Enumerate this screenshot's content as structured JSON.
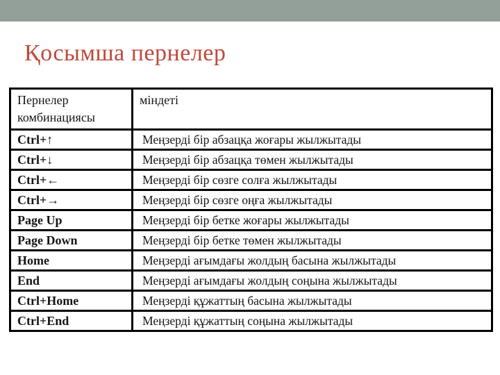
{
  "slide": {
    "title": "Қосымша пернелер"
  },
  "colors": {
    "top_band": "#93A099",
    "title_text": "#C0493B",
    "table_border": "#000000",
    "table_text": "#141414",
    "background": "#FFFFFF"
  },
  "table": {
    "headers": [
      "Пернелер комбинациясы",
      "міндеті"
    ],
    "rows": [
      {
        "key": "Ctrl+↑",
        "desc": "Меңзерді бір абзацқа жоғары жылжытады"
      },
      {
        "key": "Ctrl+↓",
        "desc": "Меңзерді бір абзацқа төмен жылжытады"
      },
      {
        "key": "Ctrl+←",
        "desc": "Меңзерді бір сөзге солға жылжытады"
      },
      {
        "key": "Ctrl+→",
        "desc": "Меңзерді бір сөзге оңға жылжытады"
      },
      {
        "key": "Page Up",
        "desc": "Меңзерді бір бетке жоғары жылжытады"
      },
      {
        "key": "Page Down",
        "desc": "Меңзерді бір бетке төмен жылжытады"
      },
      {
        "key": "Home",
        "desc": "Меңзерді ағымдағы жолдың басына жылжытады"
      },
      {
        "key": "End",
        "desc": "Меңзерді ағымдағы жолдың соңына жылжытады"
      },
      {
        "key": "Ctrl+Home",
        "desc": "Меңзерді құжаттың  басына жылжытады"
      },
      {
        "key": "Ctrl+End",
        "desc": "Меңзерді құжаттың  соңына жылжытады"
      }
    ]
  }
}
